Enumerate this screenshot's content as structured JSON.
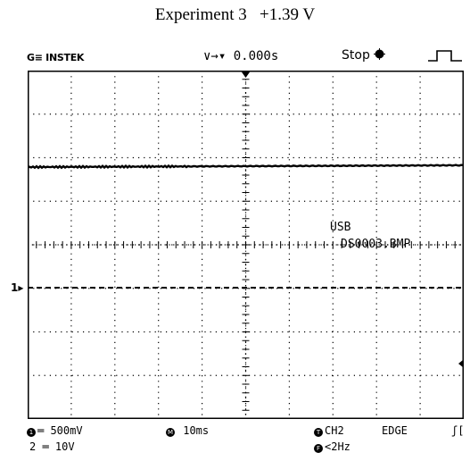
{
  "caption": {
    "experiment": "Experiment 3",
    "voltage": "+1.39 V"
  },
  "header": {
    "brand": "G≡ INSTEK",
    "time_label": "∨→▾ 0.000s",
    "status": "Stop",
    "status_icon": "record-dot-icon",
    "trigger_icon": "pulse-icon"
  },
  "screen": {
    "usb_label": "USB",
    "file_name": "DS0003.BMP",
    "channel_marker": "1▸",
    "grid": {
      "divisions_x": 10,
      "divisions_y": 8
    },
    "trace_color": "#000000"
  },
  "footer": {
    "ch1_num": "1",
    "ch1_scale": "═ 500mV",
    "ch2_num": "2",
    "ch2_scale": "═ 10V",
    "timebase_icon": "M",
    "timebase": "10ms",
    "trigger_source_icon": "T",
    "trigger_source": "CH2",
    "trigger_type": "EDGE",
    "trigger_slope": "ʃ[",
    "freq_icon": "F",
    "freq": "<2Hz"
  }
}
